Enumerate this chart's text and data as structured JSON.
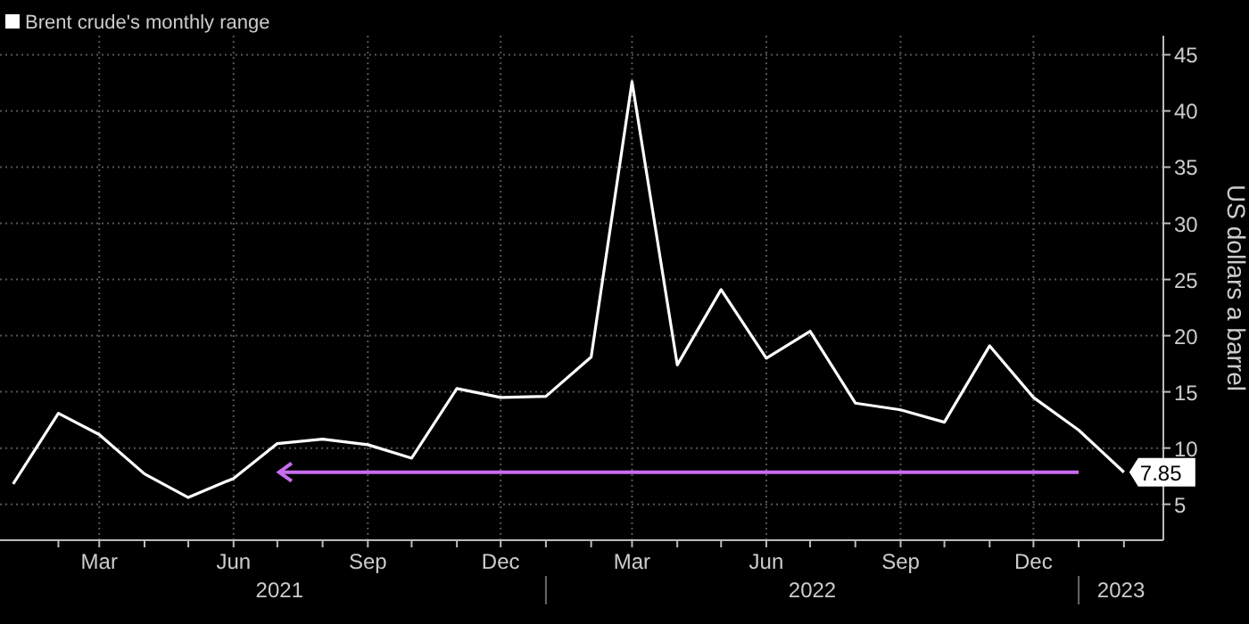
{
  "chart_data": {
    "type": "line",
    "x": [
      "2021-01",
      "2021-02",
      "2021-03",
      "2021-04",
      "2021-05",
      "2021-06",
      "2021-07",
      "2021-08",
      "2021-09",
      "2021-10",
      "2021-11",
      "2021-12",
      "2022-01",
      "2022-02",
      "2022-03",
      "2022-04",
      "2022-05",
      "2022-06",
      "2022-07",
      "2022-08",
      "2022-09",
      "2022-10",
      "2022-11",
      "2022-12",
      "2023-01",
      "2023-02"
    ],
    "series": [
      {
        "name": "Brent crude's monthly range",
        "color": "#ffffff",
        "values": [
          6.8,
          13.1,
          11.2,
          7.7,
          5.6,
          7.3,
          10.4,
          10.8,
          10.3,
          9.1,
          15.3,
          14.5,
          14.6,
          18.1,
          42.6,
          17.4,
          24.1,
          18.0,
          20.4,
          14.0,
          13.4,
          12.3,
          19.1,
          14.5,
          11.6,
          7.85
        ],
        "value_labels": [
          null,
          null,
          null,
          null,
          null,
          null,
          null,
          null,
          null,
          null,
          null,
          null,
          null,
          null,
          null,
          null,
          null,
          null,
          null,
          null,
          null,
          null,
          null,
          null,
          null,
          "7.85"
        ]
      }
    ],
    "xlim": [
      "2020-12-23",
      "2023-02-28"
    ],
    "xticks": [
      {
        "value": "2021-02",
        "label": null
      },
      {
        "value": "2021-03",
        "label": "Mar"
      },
      {
        "value": "2021-04",
        "label": null
      },
      {
        "value": "2021-05",
        "label": null
      },
      {
        "value": "2021-06",
        "label": "Jun"
      },
      {
        "value": "2021-07",
        "label": null
      },
      {
        "value": "2021-08",
        "label": null
      },
      {
        "value": "2021-09",
        "label": "Sep"
      },
      {
        "value": "2021-10",
        "label": null
      },
      {
        "value": "2021-11",
        "label": null
      },
      {
        "value": "2021-12",
        "label": "Dec"
      },
      {
        "value": "2022-01",
        "label": null
      },
      {
        "value": "2022-02",
        "label": null
      },
      {
        "value": "2022-03",
        "label": "Mar"
      },
      {
        "value": "2022-04",
        "label": null
      },
      {
        "value": "2022-05",
        "label": null
      },
      {
        "value": "2022-06",
        "label": "Jun"
      },
      {
        "value": "2022-07",
        "label": null
      },
      {
        "value": "2022-08",
        "label": null
      },
      {
        "value": "2022-09",
        "label": "Sep"
      },
      {
        "value": "2022-10",
        "label": null
      },
      {
        "value": "2022-11",
        "label": null
      },
      {
        "value": "2022-12",
        "label": "Dec"
      },
      {
        "value": "2023-01",
        "label": null
      },
      {
        "value": "2023-02",
        "label": null
      }
    ],
    "ylim": [
      1.8,
      46.7
    ],
    "yticks": [
      5,
      10,
      15,
      20,
      25,
      30,
      35,
      40,
      45
    ],
    "ylabel": "US dollars a barrel",
    "annotations": [
      "2021",
      "2022",
      "2023"
    ],
    "ref_lines": [
      {
        "axis": "y",
        "value": 7.85,
        "color": "#c86cf0"
      }
    ],
    "grid": true,
    "legend": "top left",
    "marker": "none",
    "line_style": "solid"
  }
}
